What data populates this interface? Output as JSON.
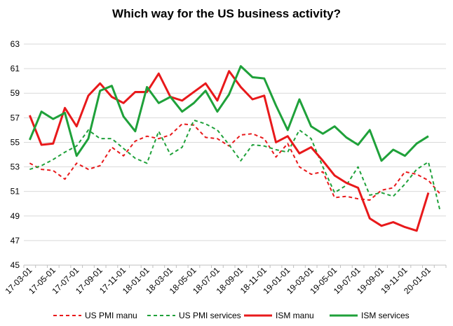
{
  "chart_data": {
    "type": "line",
    "title": "Which way for the US business activity?",
    "xlabel": "",
    "ylabel": "",
    "ylim": [
      45,
      63
    ],
    "yticks": [
      45,
      47,
      49,
      51,
      53,
      55,
      57,
      59,
      61,
      63
    ],
    "grid": "horizontal",
    "legend": "bottom",
    "x": [
      "17-03-01",
      "17-04-01",
      "17-05-01",
      "17-06-01",
      "17-07-01",
      "17-08-01",
      "17-09-01",
      "17-10-01",
      "17-11-01",
      "17-12-01",
      "18-01-01",
      "18-02-01",
      "18-03-01",
      "18-04-01",
      "18-05-01",
      "18-06-01",
      "18-07-01",
      "18-08-01",
      "18-09-01",
      "18-10-01",
      "18-11-01",
      "18-12-01",
      "19-01-01",
      "19-02-01",
      "19-03-01",
      "19-04-01",
      "19-05-01",
      "19-06-01",
      "19-07-01",
      "19-08-01",
      "19-09-01",
      "19-10-01",
      "19-11-01",
      "19-12-01",
      "20-01-01",
      "20-02-01"
    ],
    "x_tick_labels": [
      "17-03-01",
      "17-05-01",
      "17-07-01",
      "17-09-01",
      "17-11-01",
      "18-01-01",
      "18-03-01",
      "18-05-01",
      "18-07-01",
      "18-09-01",
      "18-11-01",
      "19-01-01",
      "19-03-01",
      "19-05-01",
      "19-07-01",
      "19-09-01",
      "19-11-01",
      "20-01-01"
    ],
    "series": [
      {
        "name": "US PMI manu",
        "color": "#e8191b",
        "dash": "dashed",
        "values": [
          53.3,
          52.8,
          52.7,
          52.0,
          53.3,
          52.8,
          53.1,
          54.6,
          53.9,
          55.1,
          55.5,
          55.3,
          55.6,
          56.5,
          56.4,
          55.4,
          55.3,
          54.7,
          55.6,
          55.7,
          55.3,
          53.8,
          54.9,
          53.0,
          52.4,
          52.6,
          50.5,
          50.6,
          50.4,
          50.3,
          51.1,
          51.3,
          52.6,
          52.4,
          51.9,
          50.8
        ]
      },
      {
        "name": "US PMI services",
        "color": "#1fa13a",
        "dash": "dashed",
        "values": [
          52.8,
          53.1,
          53.6,
          54.2,
          54.7,
          56.0,
          55.3,
          55.3,
          54.5,
          53.7,
          53.3,
          55.9,
          54.0,
          54.6,
          56.8,
          56.5,
          56.0,
          54.8,
          53.5,
          54.8,
          54.7,
          54.4,
          54.2,
          56.0,
          55.3,
          53.0,
          50.9,
          51.5,
          53.0,
          50.7,
          50.9,
          50.6,
          51.6,
          52.8,
          53.4,
          49.4
        ]
      },
      {
        "name": "ISM manu",
        "color": "#e8191b",
        "dash": "solid",
        "values": [
          57.2,
          54.8,
          54.9,
          57.8,
          56.3,
          58.8,
          59.8,
          58.7,
          58.2,
          59.1,
          59.1,
          60.6,
          58.7,
          58.4,
          59.1,
          59.8,
          58.4,
          60.8,
          59.5,
          58.5,
          58.8,
          55.0,
          55.5,
          54.1,
          54.6,
          53.5,
          52.3,
          51.7,
          51.3,
          48.8,
          48.2,
          48.5,
          48.1,
          47.8,
          50.9,
          null
        ]
      },
      {
        "name": "ISM services",
        "color": "#1fa13a",
        "dash": "solid",
        "values": [
          55.2,
          57.5,
          56.9,
          57.4,
          53.9,
          55.3,
          59.2,
          59.6,
          57.1,
          55.9,
          59.5,
          58.2,
          58.7,
          57.5,
          58.2,
          59.2,
          57.5,
          58.9,
          61.2,
          60.3,
          60.2,
          58.0,
          56.0,
          58.5,
          56.3,
          55.7,
          56.3,
          55.4,
          54.8,
          56.0,
          53.5,
          54.4,
          53.9,
          54.9,
          55.5,
          null
        ]
      }
    ]
  }
}
